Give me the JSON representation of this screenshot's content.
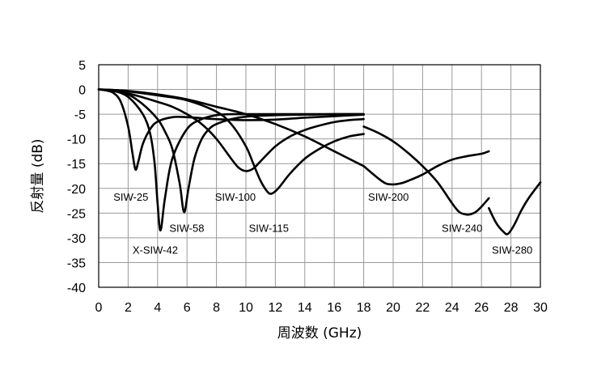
{
  "chart_data": {
    "type": "line",
    "title": "",
    "xlabel": "周波数 (GHz)",
    "ylabel": "反射量 (dB)",
    "xlim": [
      0,
      30
    ],
    "ylim": [
      -40,
      5
    ],
    "xticks": [
      0,
      2,
      4,
      6,
      8,
      10,
      12,
      14,
      16,
      18,
      20,
      22,
      24,
      26,
      28,
      30
    ],
    "yticks": [
      5,
      0,
      -5,
      -10,
      -15,
      -20,
      -25,
      -30,
      -35,
      -40
    ],
    "xtick_labels": [
      "0",
      "2",
      "4",
      "6",
      "8",
      "10",
      "12",
      "14",
      "16",
      "18",
      "20",
      "22",
      "24",
      "26",
      "28",
      "30"
    ],
    "ytick_labels": [
      "5",
      "0",
      "-5",
      "-10",
      "-15",
      "-20",
      "-25",
      "-30",
      "-35",
      "-40"
    ],
    "grid": true,
    "legend": "none",
    "series": [
      {
        "name": "SIW-25",
        "x": [
          0,
          0.5,
          1,
          1.5,
          2.0,
          2.3,
          2.5,
          2.7,
          3.0,
          3.5,
          4.0,
          5.0,
          6.0,
          7.0,
          8.0,
          10.0,
          12.0,
          14.0,
          16.0,
          18.0
        ],
        "y": [
          0,
          -0.2,
          -0.7,
          -2.5,
          -7.5,
          -13.0,
          -16.2,
          -14.5,
          -11.0,
          -8.0,
          -6.5,
          -5.6,
          -5.6,
          -5.8,
          -6.0,
          -6.2,
          -6.1,
          -5.7,
          -5.4,
          -5.1
        ]
      },
      {
        "name": "X-SIW-42",
        "x": [
          0,
          1.0,
          2.0,
          3.0,
          3.5,
          3.8,
          4.0,
          4.2,
          4.5,
          5.0,
          6.0,
          7.0,
          8.0,
          9.0,
          10.0,
          12.0,
          14.0,
          16.0,
          18.0
        ],
        "y": [
          0,
          -0.3,
          -1.5,
          -5.0,
          -9.0,
          -15.0,
          -23.0,
          -28.5,
          -22.0,
          -14.0,
          -8.0,
          -6.0,
          -5.2,
          -5.0,
          -5.0,
          -5.0,
          -5.0,
          -5.0,
          -5.0
        ]
      },
      {
        "name": "SIW-58",
        "x": [
          0,
          1.0,
          2.0,
          3.0,
          4.0,
          4.5,
          5.0,
          5.5,
          5.8,
          6.1,
          6.5,
          7.0,
          7.5,
          8.0,
          9.0,
          10.0,
          12.0,
          14.0,
          16.0,
          18.0
        ],
        "y": [
          0,
          -0.2,
          -1.0,
          -3.0,
          -6.0,
          -8.5,
          -12.0,
          -19.0,
          -24.8,
          -20.0,
          -14.0,
          -10.0,
          -8.0,
          -7.0,
          -6.0,
          -5.5,
          -5.2,
          -5.1,
          -5.0,
          -5.0
        ]
      },
      {
        "name": "SIW-100",
        "x": [
          0,
          1.0,
          2.0,
          3.0,
          4.0,
          5.0,
          6.0,
          7.0,
          8.0,
          9.0,
          9.5,
          10.0,
          10.5,
          11.0,
          12.0,
          13.0,
          14.0,
          15.0,
          16.0,
          17.0,
          18.0
        ],
        "y": [
          0,
          -0.2,
          -0.8,
          -1.6,
          -2.5,
          -3.5,
          -5.0,
          -7.0,
          -10.0,
          -14.0,
          -15.8,
          -16.5,
          -16.0,
          -14.5,
          -11.5,
          -9.5,
          -8.2,
          -7.3,
          -6.6,
          -6.2,
          -6.0
        ]
      },
      {
        "name": "SIW-115",
        "x": [
          0,
          1.0,
          2.0,
          4.0,
          6.0,
          8.0,
          9.0,
          10.0,
          10.5,
          11.0,
          11.5,
          11.8,
          12.2,
          13.0,
          14.0,
          15.0,
          16.0,
          17.0,
          18.0
        ],
        "y": [
          0,
          -0.1,
          -0.4,
          -1.2,
          -2.2,
          -4.5,
          -7.0,
          -11.5,
          -15.0,
          -18.5,
          -20.8,
          -21.0,
          -20.0,
          -17.0,
          -14.0,
          -12.0,
          -10.5,
          -9.5,
          -9.0
        ]
      },
      {
        "name": "SIW-200",
        "x": [
          0,
          2.0,
          4.0,
          6.0,
          8.0,
          10.0,
          12.0,
          14.0,
          16.0,
          18.0
        ],
        "y": [
          0,
          -0.3,
          -1.0,
          -2.0,
          -3.5,
          -5.0,
          -7.0,
          -9.5,
          -12.5,
          -15.5
        ]
      },
      {
        "name": "SIW-200",
        "x": [
          18.0,
          19.0,
          19.5,
          20.0,
          20.5,
          21.0,
          22.0,
          23.0,
          24.0,
          25.0,
          26.0,
          26.5
        ],
        "y": [
          -15.5,
          -18.0,
          -19.0,
          -19.2,
          -19.0,
          -18.5,
          -17.2,
          -15.5,
          -14.2,
          -13.5,
          -13.0,
          -12.5
        ]
      },
      {
        "name": "SIW-240",
        "x": [
          18.0,
          19.0,
          20.0,
          21.0,
          22.0,
          23.0,
          24.0,
          24.5,
          25.0,
          25.3,
          25.6,
          26.0,
          26.5
        ],
        "y": [
          -7.5,
          -8.8,
          -10.5,
          -12.8,
          -15.5,
          -18.7,
          -23.0,
          -24.8,
          -25.3,
          -25.2,
          -24.8,
          -23.7,
          -22.0
        ]
      },
      {
        "name": "SIW-280",
        "x": [
          26.5,
          27.0,
          27.5,
          27.8,
          28.2,
          28.7,
          29.2,
          30.0
        ],
        "y": [
          -24.0,
          -27.0,
          -28.8,
          -29.2,
          -27.5,
          -24.5,
          -22.0,
          -18.8
        ]
      }
    ],
    "labels": [
      {
        "text": "SIW-25",
        "x": 1.0,
        "y": -22.5
      },
      {
        "text": "X-SIW-42",
        "x": 2.3,
        "y": -33.2
      },
      {
        "text": "SIW-58",
        "x": 4.8,
        "y": -28.8
      },
      {
        "text": "SIW-100",
        "x": 7.9,
        "y": -22.5
      },
      {
        "text": "SIW-115",
        "x": 10.2,
        "y": -28.8
      },
      {
        "text": "SIW-200",
        "x": 18.3,
        "y": -22.5
      },
      {
        "text": "SIW-240",
        "x": 23.3,
        "y": -28.8
      },
      {
        "text": "SIW-280",
        "x": 26.7,
        "y": -33.2
      }
    ]
  }
}
